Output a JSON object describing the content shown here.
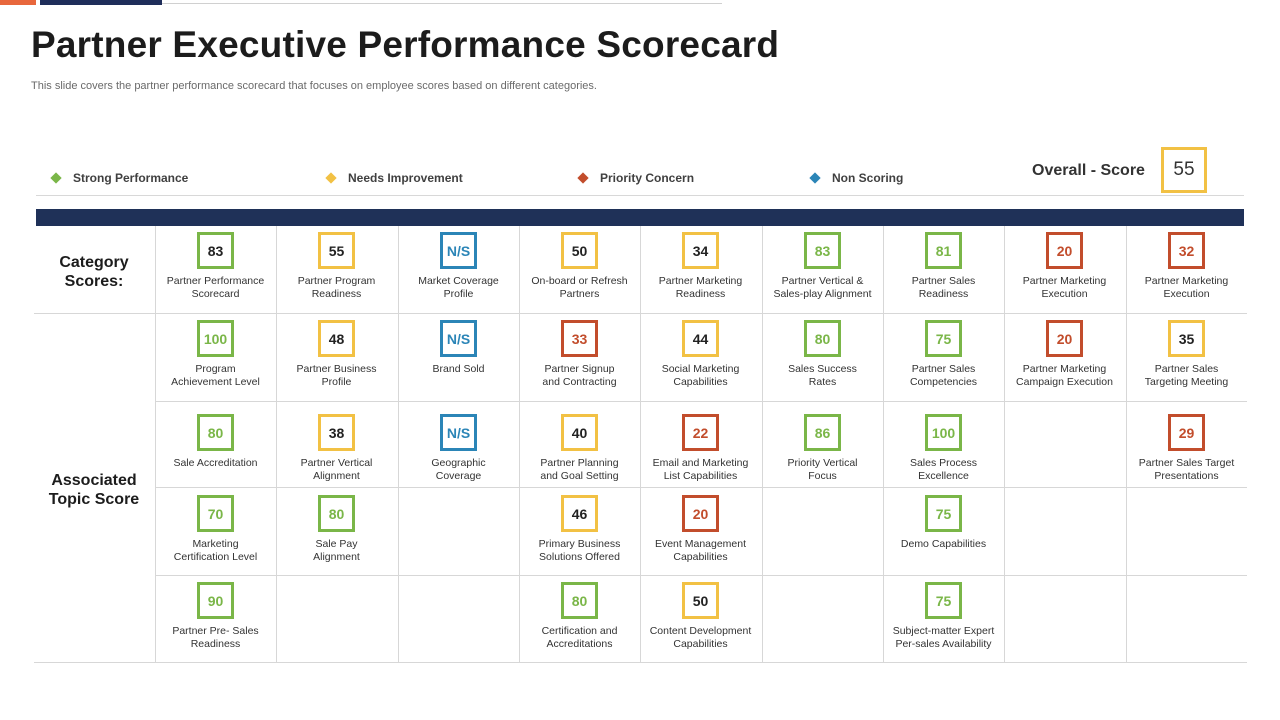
{
  "title": "Partner Executive Performance Scorecard",
  "subtitle": "This slide covers the partner performance scorecard that focuses on employee scores based on different categories.",
  "legend": [
    {
      "label": "Strong Performance",
      "color": "#7ab648"
    },
    {
      "label": "Needs Improvement",
      "color": "#f2c144"
    },
    {
      "label": "Priority Concern",
      "color": "#c24d2c"
    },
    {
      "label": "Non Scoring",
      "color": "#2b85b7"
    }
  ],
  "overall": {
    "label": "Overall - Score",
    "value": "55"
  },
  "row_labels": {
    "category": "Category\nScores:",
    "associated": "Associated\nTopic Score"
  },
  "rows": [
    [
      {
        "score": "83",
        "status": "green-dark",
        "label": "Partner Performance\nScorecard"
      },
      {
        "score": "55",
        "status": "yellow",
        "label": "Partner Program\nReadiness"
      },
      {
        "score": "N/S",
        "status": "blue",
        "label": "Market Coverage\nProfile"
      },
      {
        "score": "50",
        "status": "yellow",
        "label": "On-board or Refresh\nPartners"
      },
      {
        "score": "34",
        "status": "yellow",
        "label": "Partner Marketing\nReadiness"
      },
      {
        "score": "83",
        "status": "green",
        "label": "Partner Vertical &\nSales-play Alignment"
      },
      {
        "score": "81",
        "status": "green",
        "label": "Partner Sales\nReadiness"
      },
      {
        "score": "20",
        "status": "red",
        "label": "Partner Marketing\nExecution"
      },
      {
        "score": "32",
        "status": "red",
        "label": "Partner Marketing\nExecution"
      }
    ],
    [
      {
        "score": "100",
        "status": "green",
        "label": "Program\nAchievement Level"
      },
      {
        "score": "48",
        "status": "yellow",
        "label": "Partner Business\nProfile"
      },
      {
        "score": "N/S",
        "status": "blue",
        "label": "Brand Sold"
      },
      {
        "score": "33",
        "status": "red",
        "label": "Partner Signup\nand Contracting"
      },
      {
        "score": "44",
        "status": "yellow",
        "label": "Social Marketing\nCapabilities"
      },
      {
        "score": "80",
        "status": "green",
        "label": "Sales Success\nRates"
      },
      {
        "score": "75",
        "status": "green",
        "label": "Partner Sales\nCompetencies"
      },
      {
        "score": "20",
        "status": "red",
        "label": "Partner Marketing\nCampaign Execution"
      },
      {
        "score": "35",
        "status": "yellow",
        "label": "Partner Sales\nTargeting Meeting"
      }
    ],
    [
      {
        "score": "80",
        "status": "green",
        "label": "Sale Accreditation"
      },
      {
        "score": "38",
        "status": "yellow",
        "label": "Partner Vertical\nAlignment"
      },
      {
        "score": "N/S",
        "status": "blue",
        "label": "Geographic\nCoverage"
      },
      {
        "score": "40",
        "status": "yellow",
        "label": "Partner Planning\nand Goal Setting"
      },
      {
        "score": "22",
        "status": "red",
        "label": "Email  and Marketing\nList Capabilities"
      },
      {
        "score": "86",
        "status": "green",
        "label": "Priority Vertical\nFocus"
      },
      {
        "score": "100",
        "status": "green",
        "label": "Sales Process\nExcellence"
      },
      null,
      {
        "score": "29",
        "status": "red",
        "label": "Partner Sales Target\nPresentations"
      }
    ],
    [
      {
        "score": "70",
        "status": "green",
        "label": "Marketing\nCertification Level"
      },
      {
        "score": "80",
        "status": "green",
        "label": "Sale Pay\nAlignment"
      },
      null,
      {
        "score": "46",
        "status": "yellow",
        "label": "Primary Business\nSolutions Offered"
      },
      {
        "score": "20",
        "status": "red",
        "label": "Event Management\nCapabilities"
      },
      null,
      {
        "score": "75",
        "status": "green",
        "label": "Demo Capabilities"
      },
      null,
      null
    ],
    [
      {
        "score": "90",
        "status": "green",
        "label": "Partner Pre- Sales\nReadiness"
      },
      null,
      null,
      {
        "score": "80",
        "status": "green",
        "label": "Certification and\nAccreditations"
      },
      {
        "score": "50",
        "status": "yellow",
        "label": "Content Development\nCapabilities"
      },
      null,
      {
        "score": "75",
        "status": "green",
        "label": "Subject-matter Expert\nPer-sales Availability"
      },
      null,
      null
    ]
  ]
}
